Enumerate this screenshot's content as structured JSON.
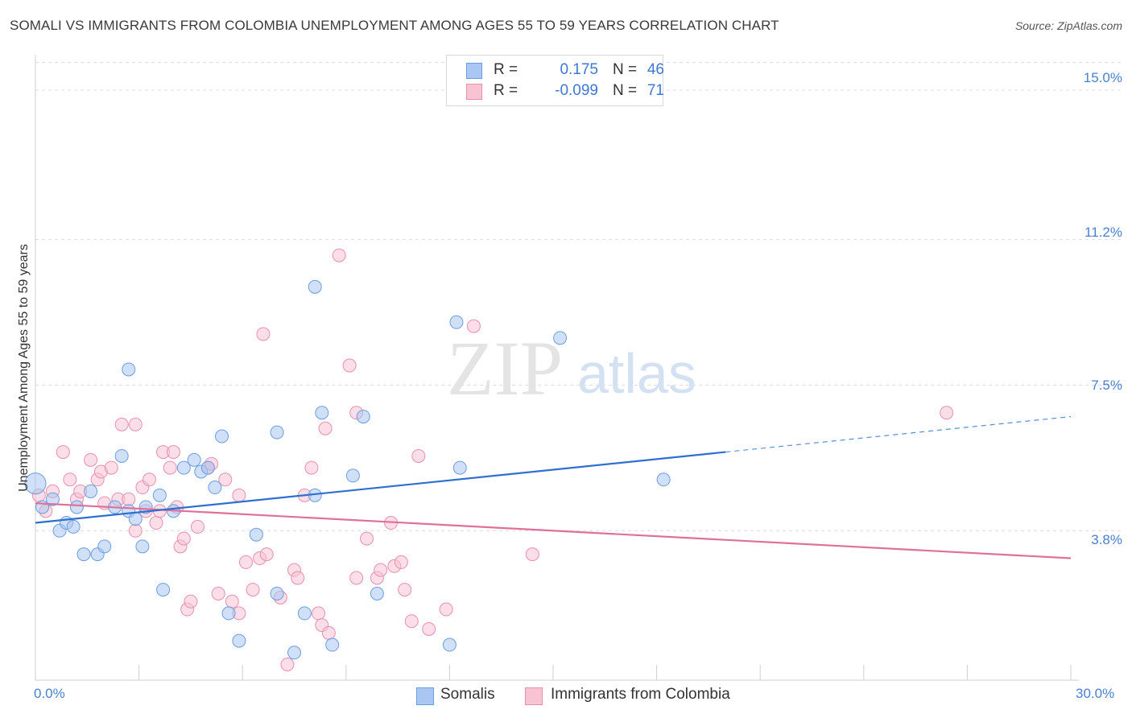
{
  "title": "SOMALI VS IMMIGRANTS FROM COLOMBIA UNEMPLOYMENT AMONG AGES 55 TO 59 YEARS CORRELATION CHART",
  "source": "Source: ZipAtlas.com",
  "watermark": {
    "zip": "ZIP",
    "atlas": "atlas"
  },
  "legend": {
    "r_label": "R =",
    "n_label": "N =",
    "series": [
      {
        "r": "0.175",
        "n": "46",
        "color": "#a9c7f2",
        "border": "#6c9de0"
      },
      {
        "r": "-0.099",
        "n": "71",
        "color": "#f8c3d3",
        "border": "#e890ab"
      }
    ]
  },
  "bottom_legend": [
    "Somalis",
    "Immigrants from Colombia"
  ],
  "chart_data": {
    "type": "scatter",
    "title": "SOMALI VS IMMIGRANTS FROM COLOMBIA UNEMPLOYMENT AMONG AGES 55 TO 59 YEARS CORRELATION CHART",
    "xlabel": "",
    "ylabel": "Unemployment Among Ages 55 to 59 years",
    "xlim": [
      0,
      30
    ],
    "ylim": [
      0,
      15.9
    ],
    "x_tick_labels": [
      {
        "value": 0,
        "label": "0.0%"
      },
      {
        "value": 30,
        "label": "30.0%"
      }
    ],
    "y_tick_labels": [
      {
        "value": 3.8,
        "label": "3.8%"
      },
      {
        "value": 7.5,
        "label": "7.5%"
      },
      {
        "value": 11.2,
        "label": "11.2%"
      },
      {
        "value": 15.0,
        "label": "15.0%"
      }
    ],
    "series": [
      {
        "name": "Somalis",
        "color": "#a9c7f2",
        "edge": "#6c9de0",
        "points": [
          [
            0.0,
            5.0
          ],
          [
            0.2,
            4.4
          ],
          [
            0.5,
            4.6
          ],
          [
            0.7,
            3.8
          ],
          [
            0.9,
            4.0
          ],
          [
            1.1,
            3.9
          ],
          [
            1.2,
            4.4
          ],
          [
            1.4,
            3.2
          ],
          [
            1.6,
            4.8
          ],
          [
            1.8,
            3.2
          ],
          [
            2.0,
            3.4
          ],
          [
            2.3,
            4.4
          ],
          [
            2.5,
            5.7
          ],
          [
            2.7,
            4.3
          ],
          [
            2.7,
            7.9
          ],
          [
            2.9,
            4.1
          ],
          [
            3.1,
            3.4
          ],
          [
            3.2,
            4.4
          ],
          [
            3.6,
            4.7
          ],
          [
            3.7,
            2.3
          ],
          [
            4.0,
            4.3
          ],
          [
            4.3,
            5.4
          ],
          [
            4.6,
            5.6
          ],
          [
            4.8,
            5.3
          ],
          [
            5.0,
            5.4
          ],
          [
            5.2,
            4.9
          ],
          [
            5.4,
            6.2
          ],
          [
            5.6,
            1.7
          ],
          [
            5.9,
            1.0
          ],
          [
            6.4,
            3.7
          ],
          [
            7.0,
            2.2
          ],
          [
            7.0,
            6.3
          ],
          [
            7.5,
            0.7
          ],
          [
            7.8,
            1.7
          ],
          [
            8.1,
            4.7
          ],
          [
            8.1,
            10.0
          ],
          [
            8.3,
            6.8
          ],
          [
            8.6,
            0.9
          ],
          [
            9.2,
            5.2
          ],
          [
            9.5,
            6.7
          ],
          [
            9.9,
            2.2
          ],
          [
            12.0,
            0.9
          ],
          [
            12.2,
            9.1
          ],
          [
            12.3,
            5.4
          ],
          [
            15.2,
            8.7
          ],
          [
            18.2,
            5.1
          ]
        ],
        "trend": {
          "x0": 0,
          "y0": 4.0,
          "x1": 20,
          "y1": 5.8,
          "dash_x1": 30,
          "dash_y1": 6.7
        }
      },
      {
        "name": "Immigrants from Colombia",
        "color": "#f8c3d3",
        "edge": "#e890ab",
        "points": [
          [
            0.1,
            4.7
          ],
          [
            0.3,
            4.3
          ],
          [
            0.5,
            4.8
          ],
          [
            0.8,
            5.8
          ],
          [
            1.0,
            5.1
          ],
          [
            1.2,
            4.6
          ],
          [
            1.3,
            4.8
          ],
          [
            1.6,
            5.6
          ],
          [
            1.8,
            5.1
          ],
          [
            1.9,
            5.3
          ],
          [
            2.0,
            4.5
          ],
          [
            2.2,
            5.4
          ],
          [
            2.4,
            4.6
          ],
          [
            2.5,
            6.5
          ],
          [
            2.7,
            4.6
          ],
          [
            2.9,
            6.5
          ],
          [
            2.9,
            3.8
          ],
          [
            3.1,
            4.9
          ],
          [
            3.2,
            4.3
          ],
          [
            3.3,
            5.1
          ],
          [
            3.5,
            4.0
          ],
          [
            3.6,
            4.3
          ],
          [
            3.7,
            5.8
          ],
          [
            3.9,
            5.4
          ],
          [
            4.0,
            5.8
          ],
          [
            4.1,
            4.4
          ],
          [
            4.2,
            3.4
          ],
          [
            4.3,
            3.6
          ],
          [
            4.4,
            1.8
          ],
          [
            4.5,
            2.0
          ],
          [
            4.7,
            3.9
          ],
          [
            5.0,
            5.4
          ],
          [
            5.1,
            5.5
          ],
          [
            5.3,
            2.2
          ],
          [
            5.5,
            5.1
          ],
          [
            5.7,
            2.0
          ],
          [
            5.9,
            1.7
          ],
          [
            5.9,
            4.7
          ],
          [
            6.1,
            3.0
          ],
          [
            6.3,
            2.3
          ],
          [
            6.5,
            3.1
          ],
          [
            6.6,
            8.8
          ],
          [
            6.7,
            3.2
          ],
          [
            7.1,
            2.1
          ],
          [
            7.3,
            0.4
          ],
          [
            7.5,
            2.8
          ],
          [
            7.6,
            2.6
          ],
          [
            7.8,
            4.7
          ],
          [
            8.0,
            5.4
          ],
          [
            8.2,
            1.7
          ],
          [
            8.3,
            1.4
          ],
          [
            8.4,
            6.4
          ],
          [
            8.5,
            1.2
          ],
          [
            8.8,
            10.8
          ],
          [
            9.1,
            8.0
          ],
          [
            9.3,
            2.6
          ],
          [
            9.3,
            6.8
          ],
          [
            9.6,
            3.6
          ],
          [
            9.9,
            2.6
          ],
          [
            10.0,
            2.8
          ],
          [
            10.3,
            4.0
          ],
          [
            10.4,
            2.9
          ],
          [
            10.6,
            3.0
          ],
          [
            10.7,
            2.3
          ],
          [
            10.9,
            1.5
          ],
          [
            11.1,
            5.7
          ],
          [
            11.4,
            1.3
          ],
          [
            11.9,
            1.8
          ],
          [
            12.7,
            9.0
          ],
          [
            14.4,
            3.2
          ],
          [
            26.4,
            6.8
          ]
        ],
        "trend": {
          "x0": 0,
          "y0": 4.5,
          "x1": 30,
          "y1": 3.1
        }
      }
    ]
  }
}
